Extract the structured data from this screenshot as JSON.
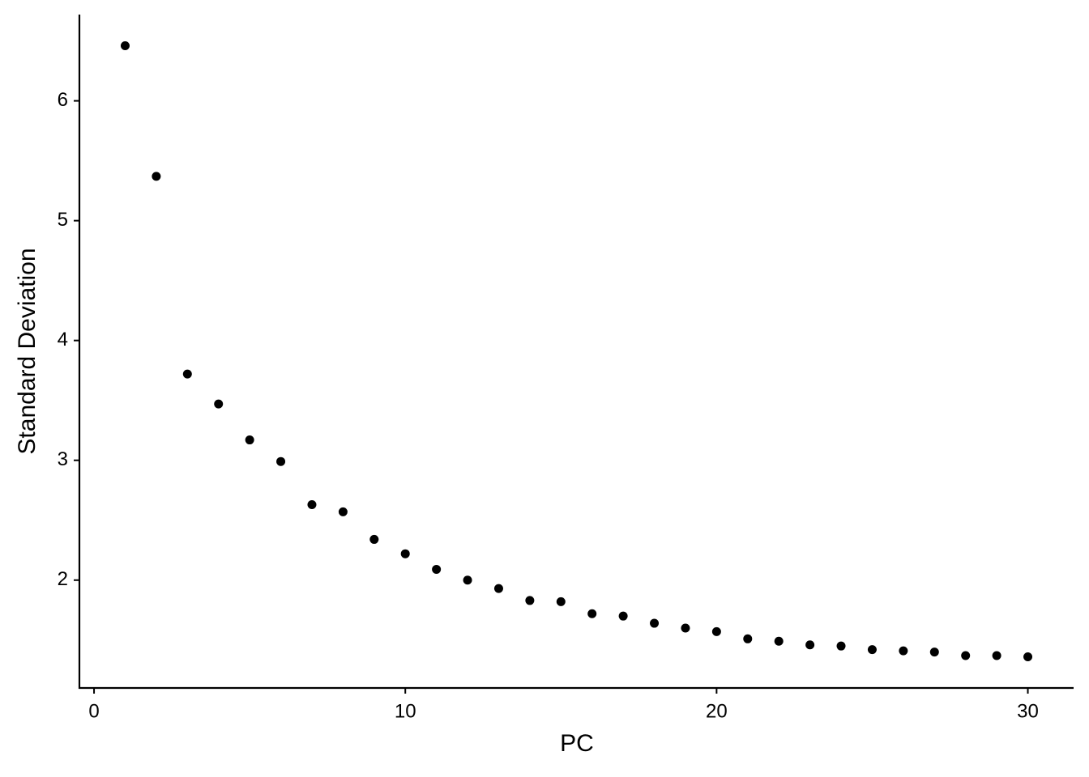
{
  "chart_data": {
    "type": "scatter",
    "x_label": "PC",
    "y_label": "Standard Deviation",
    "x": [
      1,
      2,
      3,
      4,
      5,
      6,
      7,
      8,
      9,
      10,
      11,
      12,
      13,
      14,
      15,
      16,
      17,
      18,
      19,
      20,
      21,
      22,
      23,
      24,
      25,
      26,
      27,
      28,
      29,
      30
    ],
    "series": [
      {
        "color": "#000000",
        "values": [
          6.46,
          5.37,
          3.72,
          3.47,
          3.17,
          2.99,
          2.63,
          2.57,
          2.34,
          2.22,
          2.09,
          2.0,
          1.93,
          1.83,
          1.82,
          1.72,
          1.7,
          1.64,
          1.6,
          1.57,
          1.51,
          1.49,
          1.46,
          1.45,
          1.42,
          1.41,
          1.4,
          1.37,
          1.37,
          1.36
        ]
      }
    ],
    "xlim": [
      -0.47,
      31.47
    ],
    "ylim": [
      1.1,
      6.72
    ],
    "xticks": [
      0,
      10,
      20,
      30
    ],
    "yticks": [
      2,
      3,
      4,
      5,
      6
    ],
    "grid": false
  }
}
